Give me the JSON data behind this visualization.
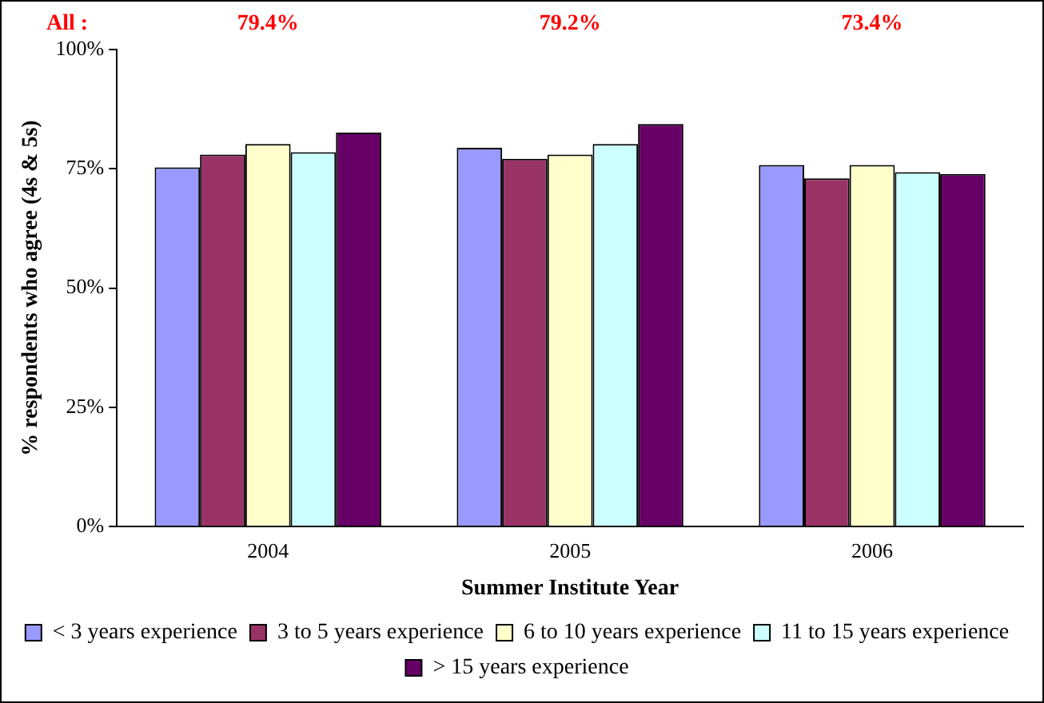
{
  "chart_data": {
    "type": "bar",
    "xlabel": "Summer Institute Year",
    "ylabel": "% respondents who agree (4s & 5s)",
    "categories": [
      "2004",
      "2005",
      "2006"
    ],
    "series": [
      {
        "name": "< 3 years experience",
        "color": "#9999ff",
        "values": [
          75.3,
          79.4,
          75.8
        ]
      },
      {
        "name": "3 to 5 years experience",
        "color": "#993366",
        "values": [
          78.0,
          77.1,
          73.0
        ]
      },
      {
        "name": "6 to 10 years experience",
        "color": "#ffffcc",
        "values": [
          80.2,
          78.0,
          75.8
        ]
      },
      {
        "name": "11 to 15 years experience",
        "color": "#ccffff",
        "values": [
          78.5,
          80.2,
          74.3
        ]
      },
      {
        "name": "> 15 years experience",
        "color": "#660066",
        "values": [
          82.6,
          84.4,
          73.9
        ]
      }
    ],
    "ylim": [
      0,
      100
    ],
    "yticks": [
      {
        "value": 0,
        "label": "0%"
      },
      {
        "value": 25,
        "label": "25%"
      },
      {
        "value": 50,
        "label": "50%"
      },
      {
        "value": 75,
        "label": "75%"
      },
      {
        "value": 100,
        "label": "100%"
      }
    ],
    "grid": false,
    "legend": "bottom",
    "annotations": [
      "All :",
      "79.4%",
      "79.2%",
      "73.4%"
    ]
  }
}
